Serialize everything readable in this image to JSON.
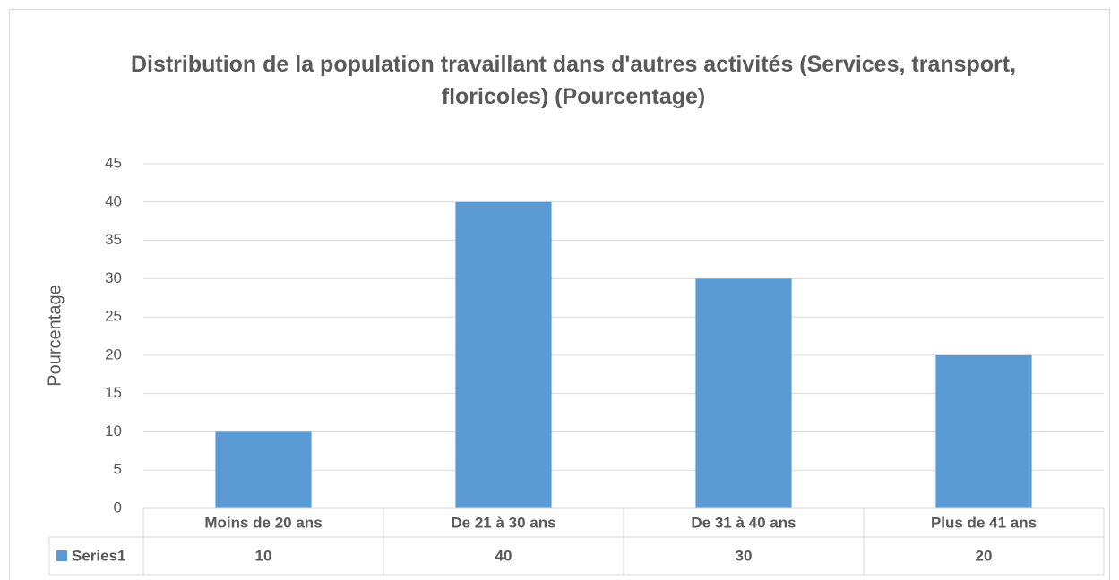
{
  "chart_data": {
    "type": "bar",
    "title": "Distribution de la population travaillant dans d'autres activités (Services, transport, floricoles) (Pourcentage)",
    "ylabel": "Pourcentage",
    "categories": [
      "Moins de 20 ans",
      "De 21 à 30 ans",
      "De 31 à 40 ans",
      "Plus de 41 ans"
    ],
    "series": [
      {
        "name": "Series1",
        "color": "#5b9bd5",
        "values": [
          10,
          40,
          30,
          20
        ]
      }
    ],
    "ylim": [
      0,
      45
    ],
    "yticks": [
      0,
      5,
      10,
      15,
      20,
      25,
      30,
      35,
      40,
      45
    ],
    "grid": true
  }
}
